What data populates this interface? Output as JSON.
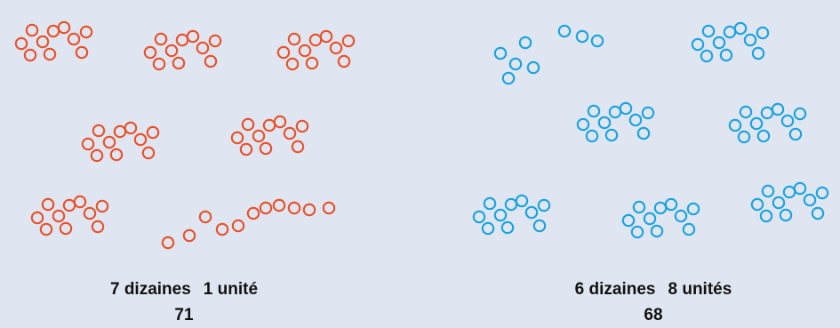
{
  "colors": {
    "left_dots": "#e8512b",
    "right_dots": "#1aa3df",
    "background": "#dfe6f1"
  },
  "left": {
    "tens_label": "7 dizaines",
    "ones_label": "1 unité",
    "total": "71",
    "groups_of_ten": 7,
    "loose_ones": 1
  },
  "right": {
    "tens_label": "6 dizaines",
    "ones_label": "8 unités",
    "total": "68",
    "groups_of_ten": 6,
    "loose_ones": 8
  }
}
